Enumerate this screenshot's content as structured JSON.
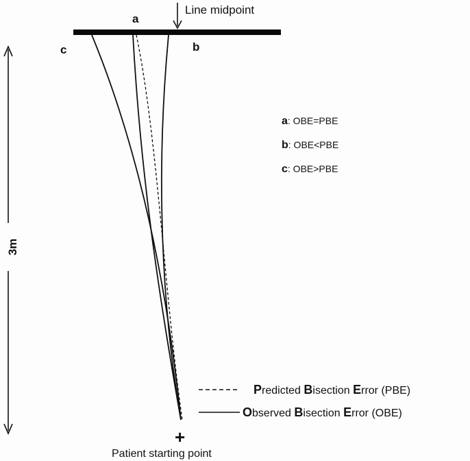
{
  "diagram": {
    "midpoint_label": "Line midpoint",
    "distance_label": "3m",
    "start_label": "Patient starting point",
    "start_marker": "+",
    "trajectory_labels": {
      "a": "a",
      "b": "b",
      "c": "c"
    },
    "key": [
      {
        "letter": "a",
        "text": ": OBE=PBE"
      },
      {
        "letter": "b",
        "text": ": OBE<PBE"
      },
      {
        "letter": "c",
        "text": ": OBE>PBE"
      }
    ],
    "legend": [
      {
        "style": "dashed",
        "parts": [
          {
            "t": "P",
            "b": true
          },
          {
            "t": "redicted ",
            "b": false
          },
          {
            "t": "B",
            "b": true
          },
          {
            "t": "isection ",
            "b": false
          },
          {
            "t": "E",
            "b": true
          },
          {
            "t": "rror (PBE)",
            "b": false
          }
        ]
      },
      {
        "style": "solid",
        "parts": [
          {
            "t": "O",
            "b": true
          },
          {
            "t": "bserved ",
            "b": false
          },
          {
            "t": "B",
            "b": true
          },
          {
            "t": "isection ",
            "b": false
          },
          {
            "t": "E",
            "b": true
          },
          {
            "t": "rror (OBE)",
            "b": false
          }
        ]
      }
    ]
  }
}
